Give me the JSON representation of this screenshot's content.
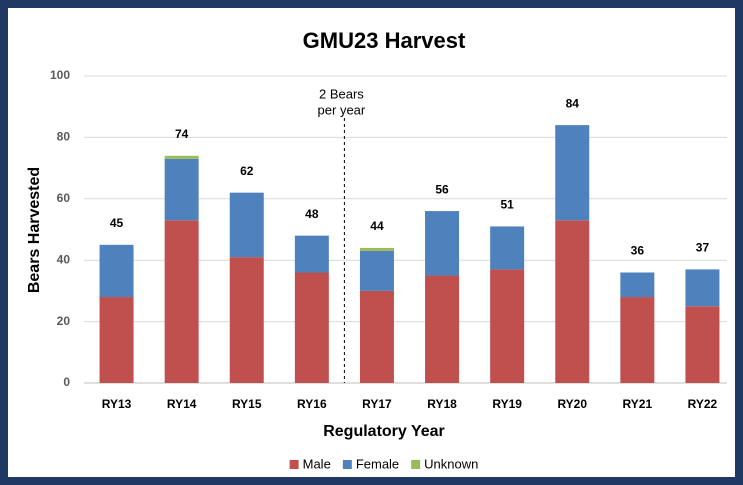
{
  "chart_data": {
    "type": "stacked_bar",
    "title": "GMU23 Harvest",
    "x_label": "Regulatory Year",
    "y_label": "Bears Harvested",
    "categories": [
      "RY13",
      "RY14",
      "RY15",
      "RY16",
      "RY17",
      "RY18",
      "RY19",
      "RY20",
      "RY21",
      "RY22"
    ],
    "series": [
      {
        "name": "Male",
        "color": "#c0504d",
        "values": [
          28,
          53,
          41,
          36,
          30,
          35,
          37,
          53,
          28,
          25
        ]
      },
      {
        "name": "Female",
        "color": "#4f81bd",
        "values": [
          17,
          20,
          21,
          12,
          13,
          21,
          14,
          31,
          8,
          12
        ]
      },
      {
        "name": "Unknown",
        "color": "#9bbb59",
        "values": [
          0,
          1,
          0,
          0,
          1,
          0,
          0,
          0,
          0,
          0
        ]
      }
    ],
    "totals": [
      45,
      74,
      62,
      48,
      44,
      56,
      51,
      84,
      36,
      37
    ],
    "annotation_lines": [
      "2 Bears",
      "per year"
    ],
    "ylim": [
      0,
      100
    ],
    "yticks": [
      0,
      20,
      40,
      60,
      80,
      100
    ],
    "grid": true,
    "legend": "bottom"
  }
}
